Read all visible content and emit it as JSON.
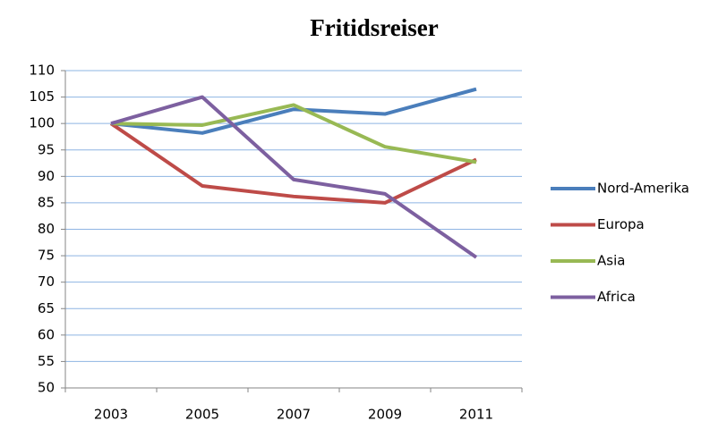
{
  "chart_data": {
    "type": "line",
    "title": "Fritidsreiser",
    "categories": [
      "2003",
      "2005",
      "2007",
      "2009",
      "2011"
    ],
    "series": [
      {
        "name": "Nord-Amerika",
        "color": "#4a7ebb",
        "values": [
          100,
          98.2,
          102.7,
          101.8,
          106.5
        ]
      },
      {
        "name": "Europa",
        "color": "#be4b48",
        "values": [
          100,
          88.2,
          86.2,
          85,
          93.2
        ]
      },
      {
        "name": "Asia",
        "color": "#98b954",
        "values": [
          100,
          99.7,
          103.5,
          95.6,
          92.7
        ]
      },
      {
        "name": "Africa",
        "color": "#7d60a0",
        "values": [
          100,
          105,
          89.4,
          86.7,
          74.7
        ]
      }
    ],
    "ylim": [
      50,
      110
    ],
    "yticks": [
      50,
      55,
      60,
      65,
      70,
      75,
      80,
      85,
      90,
      95,
      100,
      105,
      110
    ],
    "grid": true,
    "legend": "right"
  }
}
